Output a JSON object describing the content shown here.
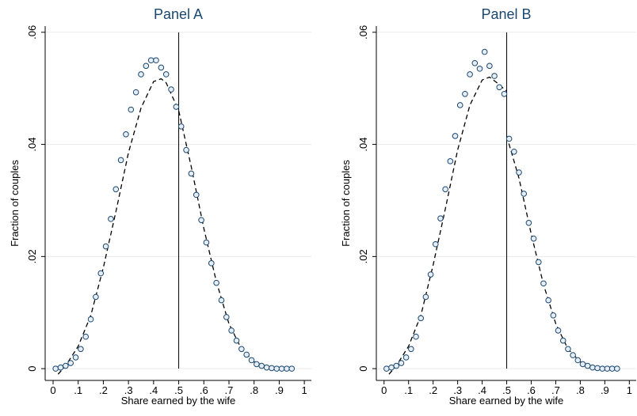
{
  "chart_data": [
    {
      "type": "scatter",
      "title": "Panel A",
      "xlabel": "Share earned by the wife",
      "ylabel": "Fraction of couples",
      "x": [
        0.01,
        0.03,
        0.05,
        0.07,
        0.09,
        0.11,
        0.13,
        0.15,
        0.17,
        0.19,
        0.21,
        0.23,
        0.25,
        0.27,
        0.29,
        0.31,
        0.33,
        0.35,
        0.37,
        0.39,
        0.41,
        0.43,
        0.45,
        0.47,
        0.49,
        0.51,
        0.53,
        0.55,
        0.57,
        0.59,
        0.61,
        0.63,
        0.65,
        0.67,
        0.69,
        0.71,
        0.73,
        0.75,
        0.77,
        0.79,
        0.81,
        0.83,
        0.85,
        0.87,
        0.89,
        0.91,
        0.93,
        0.95
      ],
      "values": [
        0,
        0.0002,
        0.0005,
        0.001,
        0.002,
        0.0035,
        0.0057,
        0.0088,
        0.0128,
        0.017,
        0.0218,
        0.0267,
        0.032,
        0.0372,
        0.0418,
        0.0462,
        0.0493,
        0.0525,
        0.054,
        0.055,
        0.055,
        0.0537,
        0.0525,
        0.0498,
        0.0467,
        0.0432,
        0.039,
        0.0348,
        0.031,
        0.0265,
        0.0225,
        0.0188,
        0.0153,
        0.0122,
        0.0092,
        0.0068,
        0.005,
        0.0035,
        0.0025,
        0.0015,
        0.0008,
        0.0005,
        0.0002,
        0.0001,
        0,
        0,
        0,
        0
      ],
      "color": "#1a476f",
      "marker_fill": "#e6edf4",
      "fit": {
        "x": [
          0.02,
          0.05,
          0.1,
          0.15,
          0.2,
          0.25,
          0.3,
          0.35,
          0.4,
          0.43,
          0.45,
          0.5,
          0.55,
          0.6,
          0.65,
          0.7,
          0.75,
          0.8,
          0.85,
          0.9,
          0.95
        ],
        "values": [
          -0.001,
          0.0005,
          0.004,
          0.0095,
          0.018,
          0.028,
          0.0385,
          0.0465,
          0.0512,
          0.0517,
          0.051,
          0.046,
          0.036,
          0.025,
          0.0155,
          0.008,
          0.0035,
          0.0012,
          0.0003,
          0.0001,
          0
        ],
        "color": "#000000",
        "dashed": true
      },
      "vline": 0.5,
      "xlim": [
        -0.0315,
        1.028
      ],
      "ylim": [
        -0.0021,
        0.0611
      ],
      "xticks": [
        0,
        {
          "value": 0.1,
          "label": ".1"
        },
        {
          "value": 0.2,
          "label": ".2"
        },
        {
          "value": 0.3,
          "label": ".3"
        },
        {
          "value": 0.4,
          "label": ".4"
        },
        {
          "value": 0.5,
          "label": ".5"
        },
        {
          "value": 0.6,
          "label": ".6"
        },
        {
          "value": 0.7,
          "label": ".7"
        },
        {
          "value": 0.8,
          "label": ".8"
        },
        {
          "value": 0.9,
          "label": ".9"
        },
        1
      ],
      "yticks": [
        0,
        {
          "value": 0.02,
          "label": ".02"
        },
        {
          "value": 0.04,
          "label": ".04"
        },
        {
          "value": 0.06,
          "label": ".06"
        }
      ],
      "grid": true
    },
    {
      "type": "scatter",
      "title": "Panel B",
      "xlabel": "Share earned by the wife",
      "ylabel": "Fraction of couples",
      "x": [
        0.01,
        0.03,
        0.05,
        0.07,
        0.09,
        0.11,
        0.13,
        0.15,
        0.17,
        0.19,
        0.21,
        0.23,
        0.25,
        0.27,
        0.29,
        0.31,
        0.33,
        0.35,
        0.37,
        0.39,
        0.41,
        0.43,
        0.45,
        0.47,
        0.49,
        0.51,
        0.53,
        0.55,
        0.57,
        0.59,
        0.61,
        0.63,
        0.65,
        0.67,
        0.69,
        0.71,
        0.73,
        0.75,
        0.77,
        0.79,
        0.81,
        0.83,
        0.85,
        0.87,
        0.89,
        0.91,
        0.93,
        0.95
      ],
      "values": [
        0,
        0.0002,
        0.0005,
        0.001,
        0.002,
        0.0035,
        0.0057,
        0.009,
        0.0128,
        0.0168,
        0.0222,
        0.0268,
        0.032,
        0.037,
        0.0415,
        0.047,
        0.049,
        0.0525,
        0.0545,
        0.0535,
        0.0565,
        0.054,
        0.0522,
        0.0502,
        0.049,
        0.041,
        0.0387,
        0.035,
        0.0312,
        0.026,
        0.0232,
        0.019,
        0.0152,
        0.0122,
        0.0095,
        0.0068,
        0.005,
        0.0035,
        0.0024,
        0.0015,
        0.0008,
        0.0005,
        0.0002,
        0.0001,
        0,
        0,
        0,
        0
      ],
      "color": "#1a476f",
      "marker_fill": "#e6edf4",
      "fit": {
        "x": [
          0.02,
          0.05,
          0.1,
          0.15,
          0.2,
          0.25,
          0.3,
          0.35,
          0.4,
          0.43,
          0.46,
          0.5,
          0.5,
          0.5,
          0.55,
          0.6,
          0.65,
          0.7,
          0.75,
          0.8,
          0.85,
          0.9,
          0.95
        ],
        "values": [
          -0.001,
          0.0005,
          0.004,
          0.0095,
          0.0185,
          0.0285,
          0.039,
          0.047,
          0.0515,
          0.052,
          0.051,
          0.0495,
          null,
          0.0415,
          0.034,
          0.024,
          0.015,
          0.008,
          0.0035,
          0.0012,
          0.0003,
          0.0001,
          0
        ],
        "color": "#000000",
        "dashed": true
      },
      "vline": 0.5,
      "xlim": [
        -0.0315,
        1.028
      ],
      "ylim": [
        -0.0021,
        0.0611
      ],
      "xticks": [
        0,
        {
          "value": 0.1,
          "label": ".1"
        },
        {
          "value": 0.2,
          "label": ".2"
        },
        {
          "value": 0.3,
          "label": ".3"
        },
        {
          "value": 0.4,
          "label": ".4"
        },
        {
          "value": 0.5,
          "label": ".5"
        },
        {
          "value": 0.6,
          "label": ".6"
        },
        {
          "value": 0.7,
          "label": ".7"
        },
        {
          "value": 0.8,
          "label": ".8"
        },
        {
          "value": 0.9,
          "label": ".9"
        },
        1
      ],
      "yticks": [
        0,
        {
          "value": 0.02,
          "label": ".02"
        },
        {
          "value": 0.04,
          "label": ".04"
        },
        {
          "value": 0.06,
          "label": ".06"
        }
      ],
      "grid": true
    }
  ]
}
